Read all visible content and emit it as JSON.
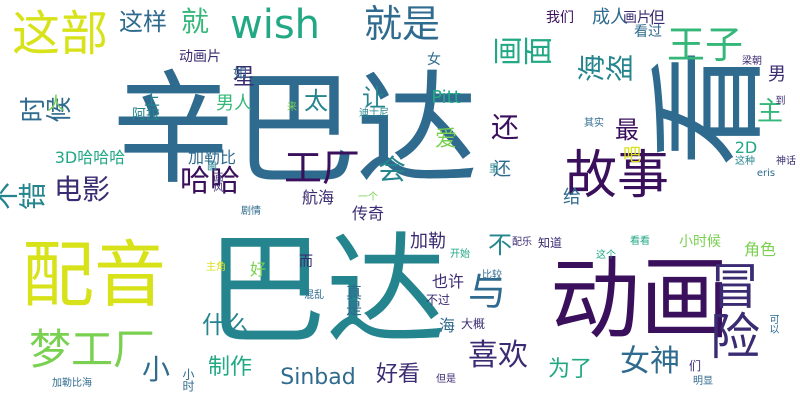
{
  "words": [
    {
      "text": "辛巴达",
      "color": "#2f6b8e"
    },
    {
      "text": "巴达",
      "color": "#25858e"
    },
    {
      "text": "看",
      "color": "#2f6b8e"
    },
    {
      "text": "动画",
      "color": "#3a0f5c"
    },
    {
      "text": "配音",
      "color": "#d7e219"
    },
    {
      "text": "冒险",
      "color": "#3b2b72"
    },
    {
      "text": "故事",
      "color": "#3a0f5c"
    },
    {
      "text": "梦工厂",
      "color": "#7ad151"
    },
    {
      "text": "这部",
      "color": "#d7e219"
    },
    {
      "text": "wish",
      "color": "#22a884"
    },
    {
      "text": "就是",
      "color": "#2f6b8e"
    },
    {
      "text": "王子",
      "color": "#35b779"
    },
    {
      "text": "海盗",
      "color": "#25858e"
    },
    {
      "text": "画面",
      "color": "#22a884"
    },
    {
      "text": "不错",
      "color": "#25858e"
    },
    {
      "text": "时候",
      "color": "#2f6b8e"
    },
    {
      "text": "电影",
      "color": "#3b2b72"
    },
    {
      "text": "工厂",
      "color": "#3a0f5c"
    },
    {
      "text": "哈哈",
      "color": "#3a0f5c"
    },
    {
      "text": "喜欢",
      "color": "#3b2b72"
    },
    {
      "text": "与",
      "color": "#2f6b8e"
    },
    {
      "text": "女神",
      "color": "#2f6b8e"
    },
    {
      "text": "为了",
      "color": "#22a884"
    },
    {
      "text": "小",
      "color": "#2f6b8e"
    },
    {
      "text": "什么",
      "color": "#25858e"
    },
    {
      "text": "制作",
      "color": "#22a884"
    },
    {
      "text": "Sinbad",
      "color": "#2f6b8e"
    },
    {
      "text": "好看",
      "color": "#3b2b72"
    },
    {
      "text": "这样",
      "color": "#2f6b8e"
    },
    {
      "text": "就",
      "color": "#35b779"
    },
    {
      "text": "会",
      "color": "#25858e"
    },
    {
      "text": "还",
      "color": "#3a0f5c"
    },
    {
      "text": "主",
      "color": "#35b779"
    },
    {
      "text": "男",
      "color": "#3b2b72"
    },
    {
      "text": "让",
      "color": "#25858e"
    },
    {
      "text": "星",
      "color": "#3b2b72"
    },
    {
      "text": "最",
      "color": "#3a0f5c"
    },
    {
      "text": "爱",
      "color": "#7ad151"
    },
    {
      "text": "不",
      "color": "#25858e"
    },
    {
      "text": "太",
      "color": "#25858e"
    },
    {
      "text": "男人",
      "color": "#35b779"
    },
    {
      "text": "人",
      "color": "#7ad151"
    },
    {
      "text": "上",
      "color": "#25858e"
    },
    {
      "text": "给",
      "color": "#2f6b8e"
    },
    {
      "text": "加勒",
      "color": "#3b2b72"
    },
    {
      "text": "角色",
      "color": "#7ad151"
    },
    {
      "text": "Pitt",
      "color": "#22a884"
    },
    {
      "text": "还",
      "color": "#2f6b8e"
    },
    {
      "text": "吧",
      "color": "#d7e219"
    },
    {
      "text": "我们",
      "color": "#3a0f5c"
    },
    {
      "text": "成人",
      "color": "#2f6b8e"
    },
    {
      "text": "但",
      "color": "#3b2b72"
    },
    {
      "text": "画片",
      "color": "#3b2b72"
    },
    {
      "text": "看过",
      "color": "#2f6b8e"
    },
    {
      "text": "动画片",
      "color": "#3b2b72"
    },
    {
      "text": "如",
      "color": "#2f6b8e"
    },
    {
      "text": "女",
      "color": "#2f6b8e"
    },
    {
      "text": "阿拉",
      "color": "#25858e"
    },
    {
      "text": "3D哈哈哈",
      "color": "#22a884"
    },
    {
      "text": "加勒比",
      "color": "#2f6b8e"
    },
    {
      "text": "2D",
      "color": "#22a884"
    },
    {
      "text": "传奇",
      "color": "#3b2b72"
    },
    {
      "text": "航海",
      "color": "#3b2b72"
    },
    {
      "text": "也许",
      "color": "#3b2b72"
    },
    {
      "text": "海",
      "color": "#2f6b8e"
    },
    {
      "text": "真是",
      "color": "#2f6b8e"
    },
    {
      "text": "不过",
      "color": "#3b2b72"
    },
    {
      "text": "而",
      "color": "#3b2b72"
    },
    {
      "text": "好",
      "color": "#7ad151"
    },
    {
      "text": "小时候",
      "color": "#7ad151"
    },
    {
      "text": "主角",
      "color": "#d7e219"
    },
    {
      "text": "小时",
      "color": "#2f6b8e"
    },
    {
      "text": "加勒比海",
      "color": "#2f6b8e"
    },
    {
      "text": "明显",
      "color": "#2f6b8e"
    },
    {
      "text": "们",
      "color": "#3b2b72"
    },
    {
      "text": "但是",
      "color": "#3b2b72"
    },
    {
      "text": "大概",
      "color": "#3b2b72"
    },
    {
      "text": "混乱",
      "color": "#2f6b8e"
    },
    {
      "text": "比较",
      "color": "#2f6b8e"
    },
    {
      "text": "配乐",
      "color": "#3b2b72"
    },
    {
      "text": "知道",
      "color": "#3b2b72"
    },
    {
      "text": "开始",
      "color": "#22a884"
    },
    {
      "text": "看看",
      "color": "#22a884"
    },
    {
      "text": "这个",
      "color": "#22a884"
    },
    {
      "text": "梁朝",
      "color": "#3b2b72"
    },
    {
      "text": "迪士尼",
      "color": "#25858e"
    },
    {
      "text": "来",
      "color": "#7ad151"
    },
    {
      "text": "其实",
      "color": "#2f6b8e"
    },
    {
      "text": "画风",
      "color": "#3b2b72"
    },
    {
      "text": "里",
      "color": "#25858e"
    },
    {
      "text": "一个",
      "color": "#7ad151"
    },
    {
      "text": "剧情",
      "color": "#2f6b8e"
    },
    {
      "text": "这种",
      "color": "#25858e"
    },
    {
      "text": "神话",
      "color": "#3b2b72"
    },
    {
      "text": "eris",
      "color": "#2f6b8e"
    },
    {
      "text": "到",
      "color": "#3b2b72"
    },
    {
      "text": "可以",
      "color": "#2f6b8e"
    },
    {
      "text": "画",
      "color": "#25858e"
    }
  ]
}
